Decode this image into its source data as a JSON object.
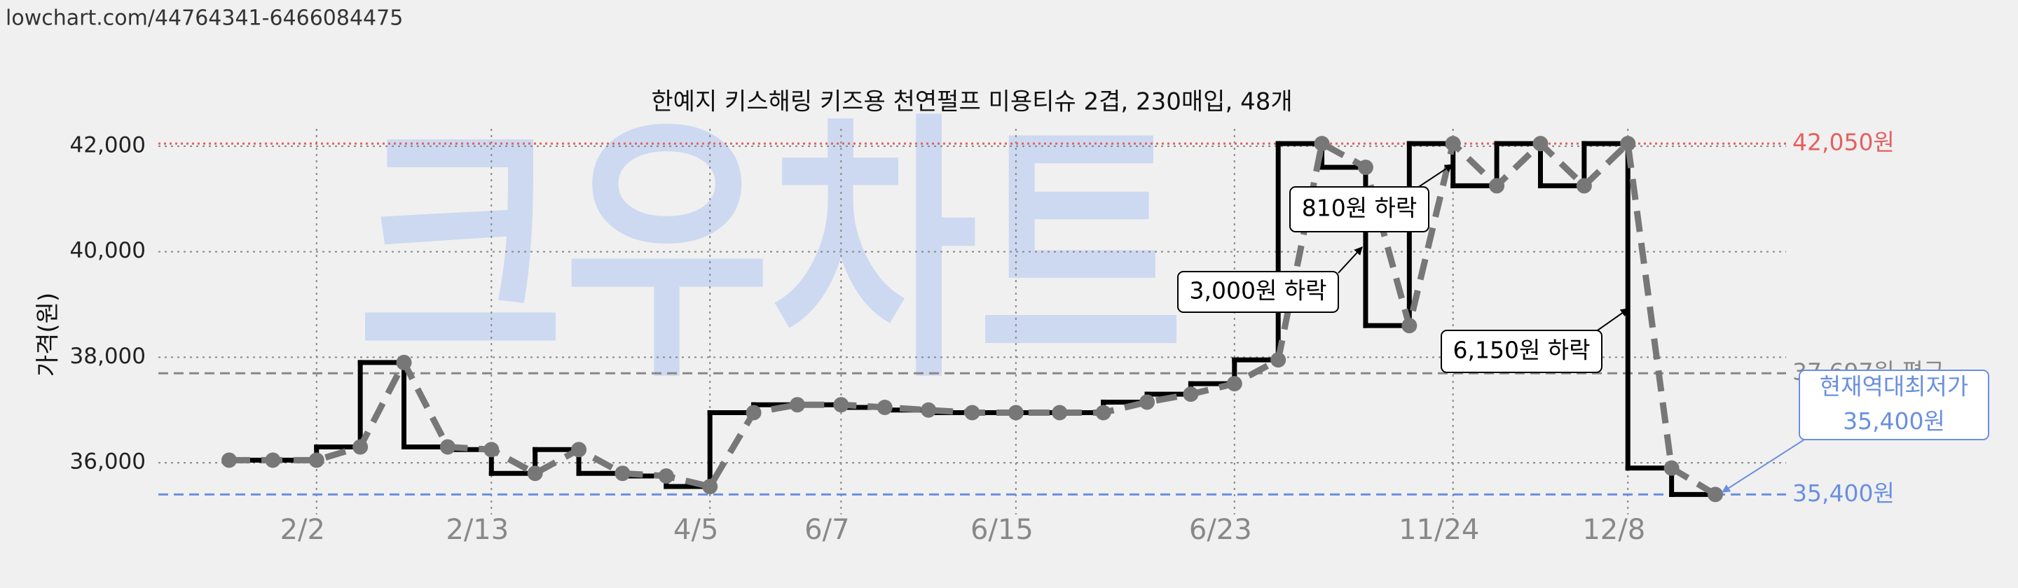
{
  "url": "lowchart.com/44764341-6466084475",
  "chart_data": {
    "type": "line",
    "title": "한예지 키스해링 키즈용 천연펄프 미용티슈 2겹, 230매입, 48개",
    "watermark": "크우차트",
    "y_label": "가격(원)",
    "categories": [
      null,
      null,
      "2/2",
      null,
      null,
      null,
      "2/13",
      null,
      null,
      null,
      null,
      "4/5",
      null,
      null,
      "6/7",
      null,
      null,
      null,
      "6/15",
      null,
      null,
      null,
      null,
      "6/23",
      null,
      null,
      null,
      null,
      "11/24",
      null,
      null,
      null,
      "12/8",
      null,
      null
    ],
    "series": [
      {
        "color": "#777777",
        "step_color": "#000000",
        "values": [
          36050,
          36050,
          36050,
          36300,
          37900,
          36300,
          36250,
          35800,
          36250,
          35800,
          35750,
          35550,
          36950,
          37100,
          37100,
          37050,
          37000,
          36950,
          36950,
          36950,
          36950,
          37150,
          37300,
          37500,
          37950,
          42050,
          41600,
          38600,
          42050,
          41250,
          42050,
          41250,
          42050,
          35900,
          35400
        ]
      }
    ],
    "ylim": [
      35020,
      42330
    ],
    "yticks": [
      {
        "value": 36000,
        "label": "36,000"
      },
      {
        "value": 38000,
        "label": "38,000"
      },
      {
        "value": 40000,
        "label": "40,000"
      },
      {
        "value": 42000,
        "label": "42,000"
      }
    ],
    "grid": true,
    "reference_lines": [
      {
        "value": 42050,
        "label": "42,050원",
        "color": "#e46060",
        "dash": "dotted"
      },
      {
        "value": 37697,
        "label": "37,697원 평균",
        "color": "#888888",
        "dash": "dashed"
      },
      {
        "value": 35400,
        "label": "35,400원",
        "color": "#6a8fe0",
        "dash": "dashed"
      }
    ],
    "annotations": [
      {
        "lines": [
          "810원 하락"
        ],
        "color": "#000000"
      },
      {
        "lines": [
          "3,000원 하락"
        ],
        "color": "#000000"
      },
      {
        "lines": [
          "6,150원 하락"
        ],
        "color": "#000000"
      },
      {
        "lines": [
          "현재역대최저가",
          "35,400원"
        ],
        "color": "#6a8fe0"
      }
    ]
  }
}
